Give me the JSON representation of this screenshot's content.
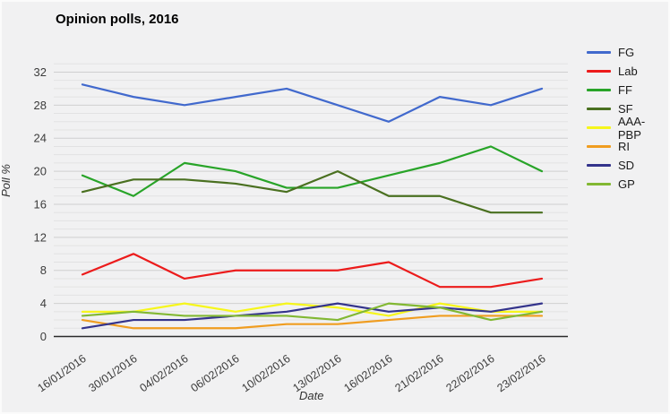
{
  "chart_data": {
    "type": "line",
    "title": "Opinion polls, 2016",
    "xlabel": "Date",
    "ylabel": "Poll %",
    "categories": [
      "16/01/2016",
      "30/01/2016",
      "04/02/2016",
      "06/02/2016",
      "10/02/2016",
      "13/02/2016",
      "16/02/2016",
      "21/02/2016",
      "22/02/2016",
      "23/02/2016"
    ],
    "series": [
      {
        "name": "FG",
        "color": "#4169cd",
        "values": [
          30.5,
          29,
          28,
          29,
          30,
          28,
          26,
          29,
          28,
          30
        ]
      },
      {
        "name": "Lab",
        "color": "#ec1b1b",
        "values": [
          7.5,
          10,
          7,
          8,
          8,
          8,
          9,
          6,
          6,
          7
        ]
      },
      {
        "name": "FF",
        "color": "#28a428",
        "values": [
          19.5,
          17,
          21,
          20,
          18,
          18,
          19.5,
          21,
          23,
          20
        ]
      },
      {
        "name": "SF",
        "color": "#4a7020",
        "values": [
          17.5,
          19,
          19,
          18.5,
          17.5,
          20,
          17,
          17,
          15,
          15
        ]
      },
      {
        "name": "AAA-PBP",
        "color": "#f6f61c",
        "values": [
          3,
          3,
          4,
          3,
          4,
          3.5,
          2.5,
          4,
          3,
          3
        ]
      },
      {
        "name": "RI",
        "color": "#f09d20",
        "values": [
          2,
          1,
          1,
          1,
          1.5,
          1.5,
          2,
          2.5,
          2.5,
          2.5
        ]
      },
      {
        "name": "SD",
        "color": "#34348c",
        "values": [
          1,
          2,
          2,
          2.5,
          3,
          4,
          3,
          3.5,
          3,
          4
        ]
      },
      {
        "name": "GP",
        "color": "#82b833",
        "values": [
          2.5,
          3,
          2.5,
          2.5,
          2.5,
          2,
          4,
          3.5,
          2,
          3
        ]
      }
    ],
    "yticks": [
      0,
      4,
      8,
      12,
      16,
      20,
      24,
      28,
      32
    ],
    "ylim": [
      0,
      33.8
    ],
    "grid": "horizontal, minor every 1, major every 4",
    "legend_position": "right",
    "colors": {
      "background": "#f1f1f2",
      "grid_minor": "#e2e2e3",
      "grid_major": "#cfcfd0",
      "axis_line": "#2b2b2b",
      "tick_text": "#3c3c3c"
    }
  }
}
